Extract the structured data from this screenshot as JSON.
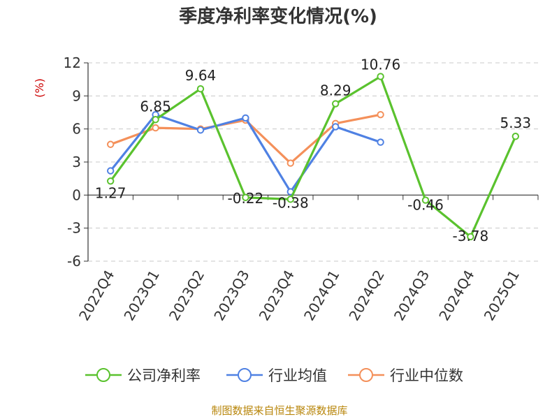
{
  "chart_data": {
    "type": "line",
    "title": "季度净利率变化情况(%)",
    "ylabel": "(%)",
    "xlabel": "",
    "categories": [
      "2022Q4",
      "2023Q1",
      "2023Q2",
      "2023Q3",
      "2023Q4",
      "2024Q1",
      "2024Q2",
      "2024Q3",
      "2024Q4",
      "2025Q1"
    ],
    "ylim": [
      -6,
      12
    ],
    "yticks": [
      -6,
      -3,
      0,
      3,
      6,
      9,
      12
    ],
    "grid": true,
    "legend_position": "bottom",
    "series": [
      {
        "name": "公司净利率",
        "color": "#5ac22e",
        "values": [
          1.27,
          6.85,
          9.64,
          -0.22,
          -0.38,
          8.29,
          10.76,
          -0.46,
          -3.78,
          5.33
        ],
        "labels": [
          "1.27",
          "6.85",
          "9.64",
          "-0.22",
          "-0.38",
          "8.29",
          "10.76",
          "-0.46",
          "-3.78",
          "5.33"
        ]
      },
      {
        "name": "行业均值",
        "color": "#4f81e3",
        "values": [
          2.2,
          7.3,
          5.9,
          7.0,
          0.3,
          6.2,
          4.8,
          null,
          null,
          null
        ]
      },
      {
        "name": "行业中位数",
        "color": "#f4905a",
        "values": [
          4.6,
          6.1,
          6.0,
          6.8,
          2.9,
          6.5,
          7.3,
          null,
          null,
          null
        ]
      }
    ]
  },
  "source": "制图数据来自恒生聚源数据库"
}
